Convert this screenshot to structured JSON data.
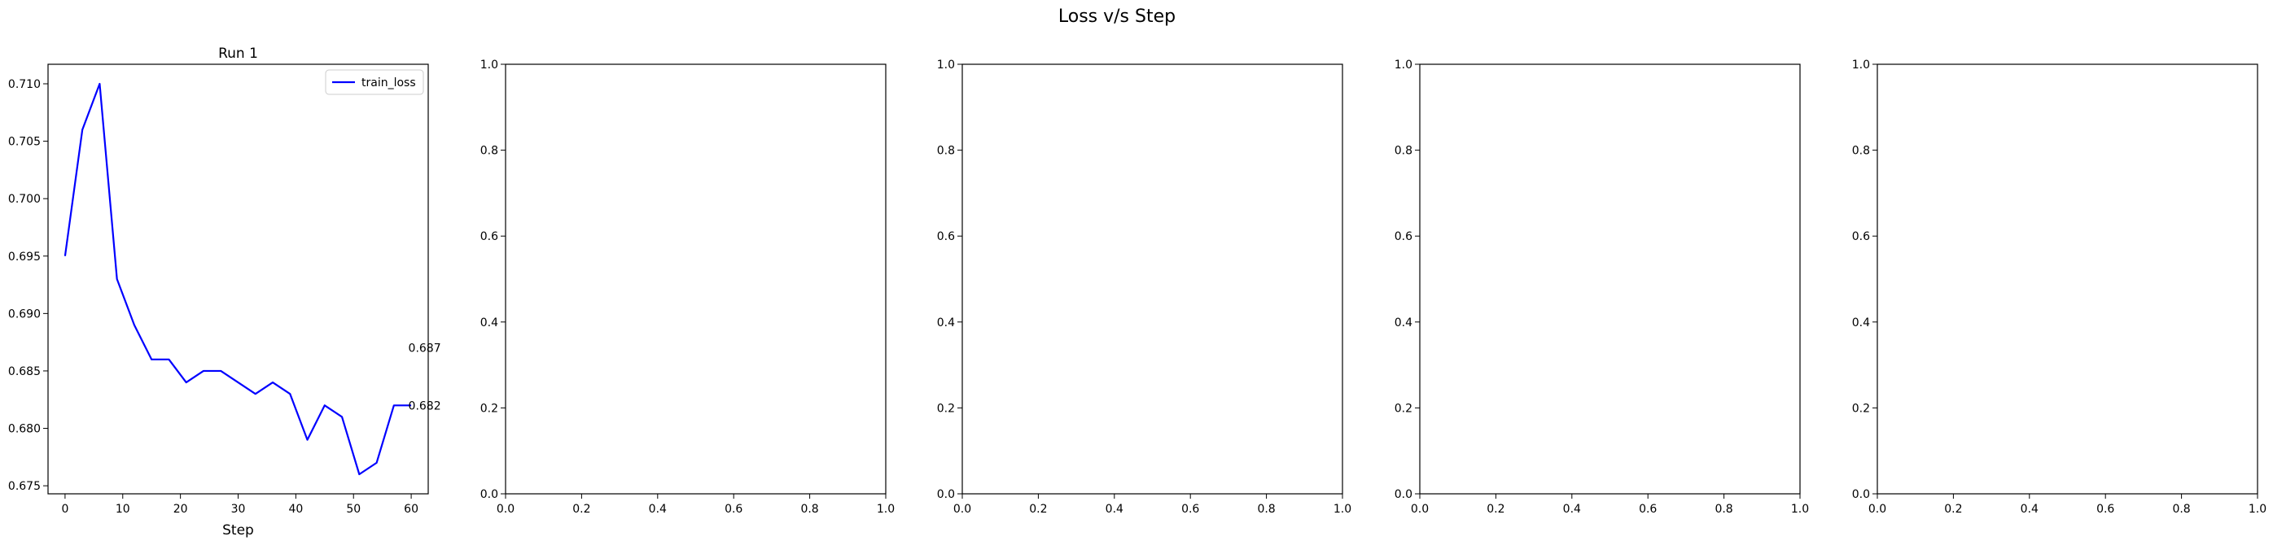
{
  "figure": {
    "suptitle": "Loss v/s Step"
  },
  "chart_data": [
    {
      "type": "line",
      "title": "Run 1",
      "xlabel": "Step",
      "ylabel": "",
      "xlim": [
        -2.95,
        62.95
      ],
      "ylim": [
        0.6743,
        0.7117
      ],
      "xticks": [
        0,
        10,
        20,
        30,
        40,
        50,
        60
      ],
      "yticks": [
        0.675,
        0.68,
        0.685,
        0.69,
        0.695,
        0.7,
        0.705,
        0.71
      ],
      "ytick_labels": [
        "0.675",
        "0.680",
        "0.685",
        "0.690",
        "0.695",
        "0.700",
        "0.705",
        "0.710"
      ],
      "grid": false,
      "legend": "upper right",
      "series": [
        {
          "name": "train_loss",
          "color": "#0000ff",
          "x": [
            0,
            3,
            6,
            9,
            12,
            15,
            18,
            21,
            24,
            27,
            30,
            33,
            36,
            39,
            42,
            45,
            48,
            51,
            54,
            57,
            60
          ],
          "y": [
            0.695,
            0.706,
            0.71,
            0.693,
            0.689,
            0.686,
            0.686,
            0.684,
            0.685,
            0.685,
            0.684,
            0.683,
            0.684,
            0.683,
            0.679,
            0.682,
            0.681,
            0.676,
            0.677,
            0.682,
            0.682
          ]
        }
      ],
      "annotations": [
        {
          "x": 59.5,
          "y": 0.687,
          "text": "0.687"
        },
        {
          "x": 59.5,
          "y": 0.682,
          "text": "0.682"
        }
      ]
    },
    {
      "type": "line",
      "title": "",
      "xlim": [
        0,
        1
      ],
      "ylim": [
        0,
        1
      ],
      "xticks": [
        0,
        0.2,
        0.4,
        0.6,
        0.8,
        1
      ],
      "yticks": [
        0,
        0.2,
        0.4,
        0.6,
        0.8,
        1
      ],
      "xtick_labels": [
        "0.0",
        "0.2",
        "0.4",
        "0.6",
        "0.8",
        "1.0"
      ],
      "ytick_labels": [
        "0.0",
        "0.2",
        "0.4",
        "0.6",
        "0.8",
        "1.0"
      ],
      "series": []
    },
    {
      "type": "line",
      "title": "",
      "xlim": [
        0,
        1
      ],
      "ylim": [
        0,
        1
      ],
      "xticks": [
        0,
        0.2,
        0.4,
        0.6,
        0.8,
        1
      ],
      "yticks": [
        0,
        0.2,
        0.4,
        0.6,
        0.8,
        1
      ],
      "xtick_labels": [
        "0.0",
        "0.2",
        "0.4",
        "0.6",
        "0.8",
        "1.0"
      ],
      "ytick_labels": [
        "0.0",
        "0.2",
        "0.4",
        "0.6",
        "0.8",
        "1.0"
      ],
      "series": []
    },
    {
      "type": "line",
      "title": "",
      "xlim": [
        0,
        1
      ],
      "ylim": [
        0,
        1
      ],
      "xticks": [
        0,
        0.2,
        0.4,
        0.6,
        0.8,
        1
      ],
      "yticks": [
        0,
        0.2,
        0.4,
        0.6,
        0.8,
        1
      ],
      "xtick_labels": [
        "0.0",
        "0.2",
        "0.4",
        "0.6",
        "0.8",
        "1.0"
      ],
      "ytick_labels": [
        "0.0",
        "0.2",
        "0.4",
        "0.6",
        "0.8",
        "1.0"
      ],
      "series": []
    },
    {
      "type": "line",
      "title": "",
      "xlim": [
        0,
        1
      ],
      "ylim": [
        0,
        1
      ],
      "xticks": [
        0,
        0.2,
        0.4,
        0.6,
        0.8,
        1
      ],
      "yticks": [
        0,
        0.2,
        0.4,
        0.6,
        0.8,
        1
      ],
      "xtick_labels": [
        "0.0",
        "0.2",
        "0.4",
        "0.6",
        "0.8",
        "1.0"
      ],
      "ytick_labels": [
        "0.0",
        "0.2",
        "0.4",
        "0.6",
        "0.8",
        "1.0"
      ],
      "series": []
    }
  ]
}
